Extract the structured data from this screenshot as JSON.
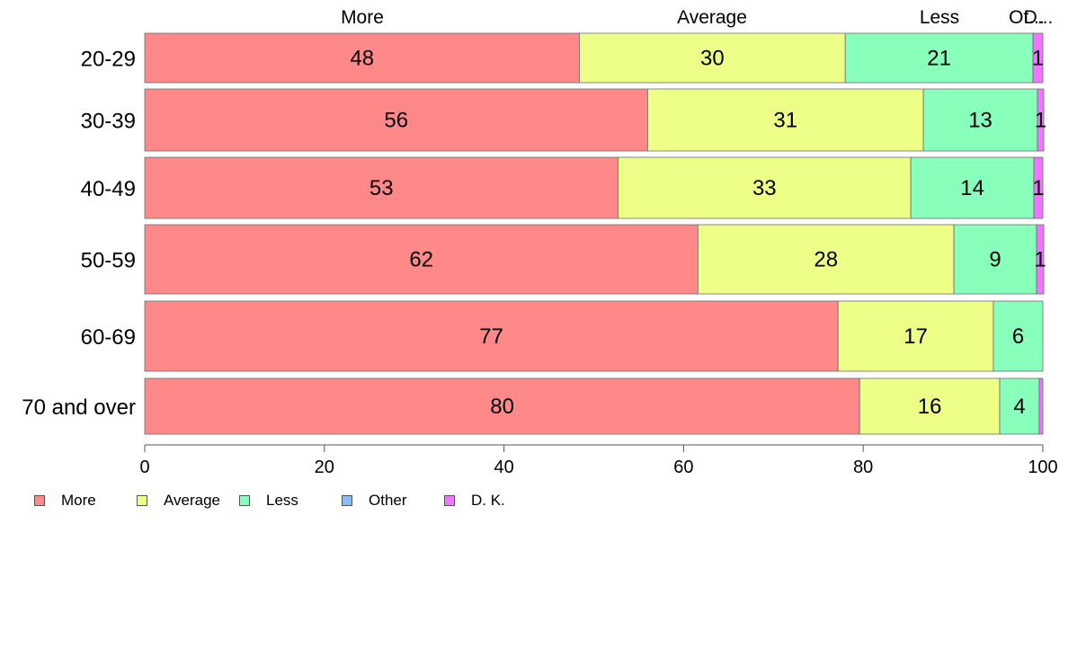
{
  "chart_data": {
    "type": "bar",
    "orientation": "horizontal",
    "stacked": true,
    "categories": [
      "20-29",
      "30-39",
      "40-49",
      "50-59",
      "60-69",
      "70 and over"
    ],
    "series": [
      {
        "name": "More",
        "color": "#ff8888",
        "values": [
          48.4,
          56.0,
          52.7,
          61.6,
          77.2,
          79.6
        ],
        "labels": [
          "48",
          "56",
          "53",
          "62",
          "77",
          "80"
        ]
      },
      {
        "name": "Average",
        "color": "#eeff88",
        "values": [
          29.6,
          30.7,
          32.6,
          28.5,
          17.3,
          15.6
        ],
        "labels": [
          "30",
          "31",
          "33",
          "28",
          "17",
          "16"
        ]
      },
      {
        "name": "Less",
        "color": "#88ffbb",
        "values": [
          20.9,
          12.7,
          13.7,
          9.2,
          5.5,
          4.4
        ],
        "labels": [
          "21",
          "13",
          "14",
          "9",
          "6",
          "4"
        ]
      },
      {
        "name": "Other",
        "color": "#88bbff",
        "values": [
          0,
          0,
          0,
          0,
          0,
          0
        ],
        "labels": [
          "",
          "",
          "",
          "",
          "",
          ""
        ]
      },
      {
        "name": "D. K.",
        "color": "#ee77ff",
        "values": [
          1.1,
          0.7,
          1.0,
          0.8,
          0,
          0.4
        ],
        "labels": [
          "1",
          "1",
          "1",
          "1",
          "",
          ""
        ]
      }
    ],
    "top_labels": [
      "More",
      "Average",
      "Less",
      "Ot...",
      "D..."
    ],
    "x_ticks": [
      "0",
      "20",
      "40",
      "60",
      "80",
      "100"
    ],
    "xlim": [
      0,
      100
    ],
    "grid": false,
    "legend_position": "bottom-left"
  }
}
